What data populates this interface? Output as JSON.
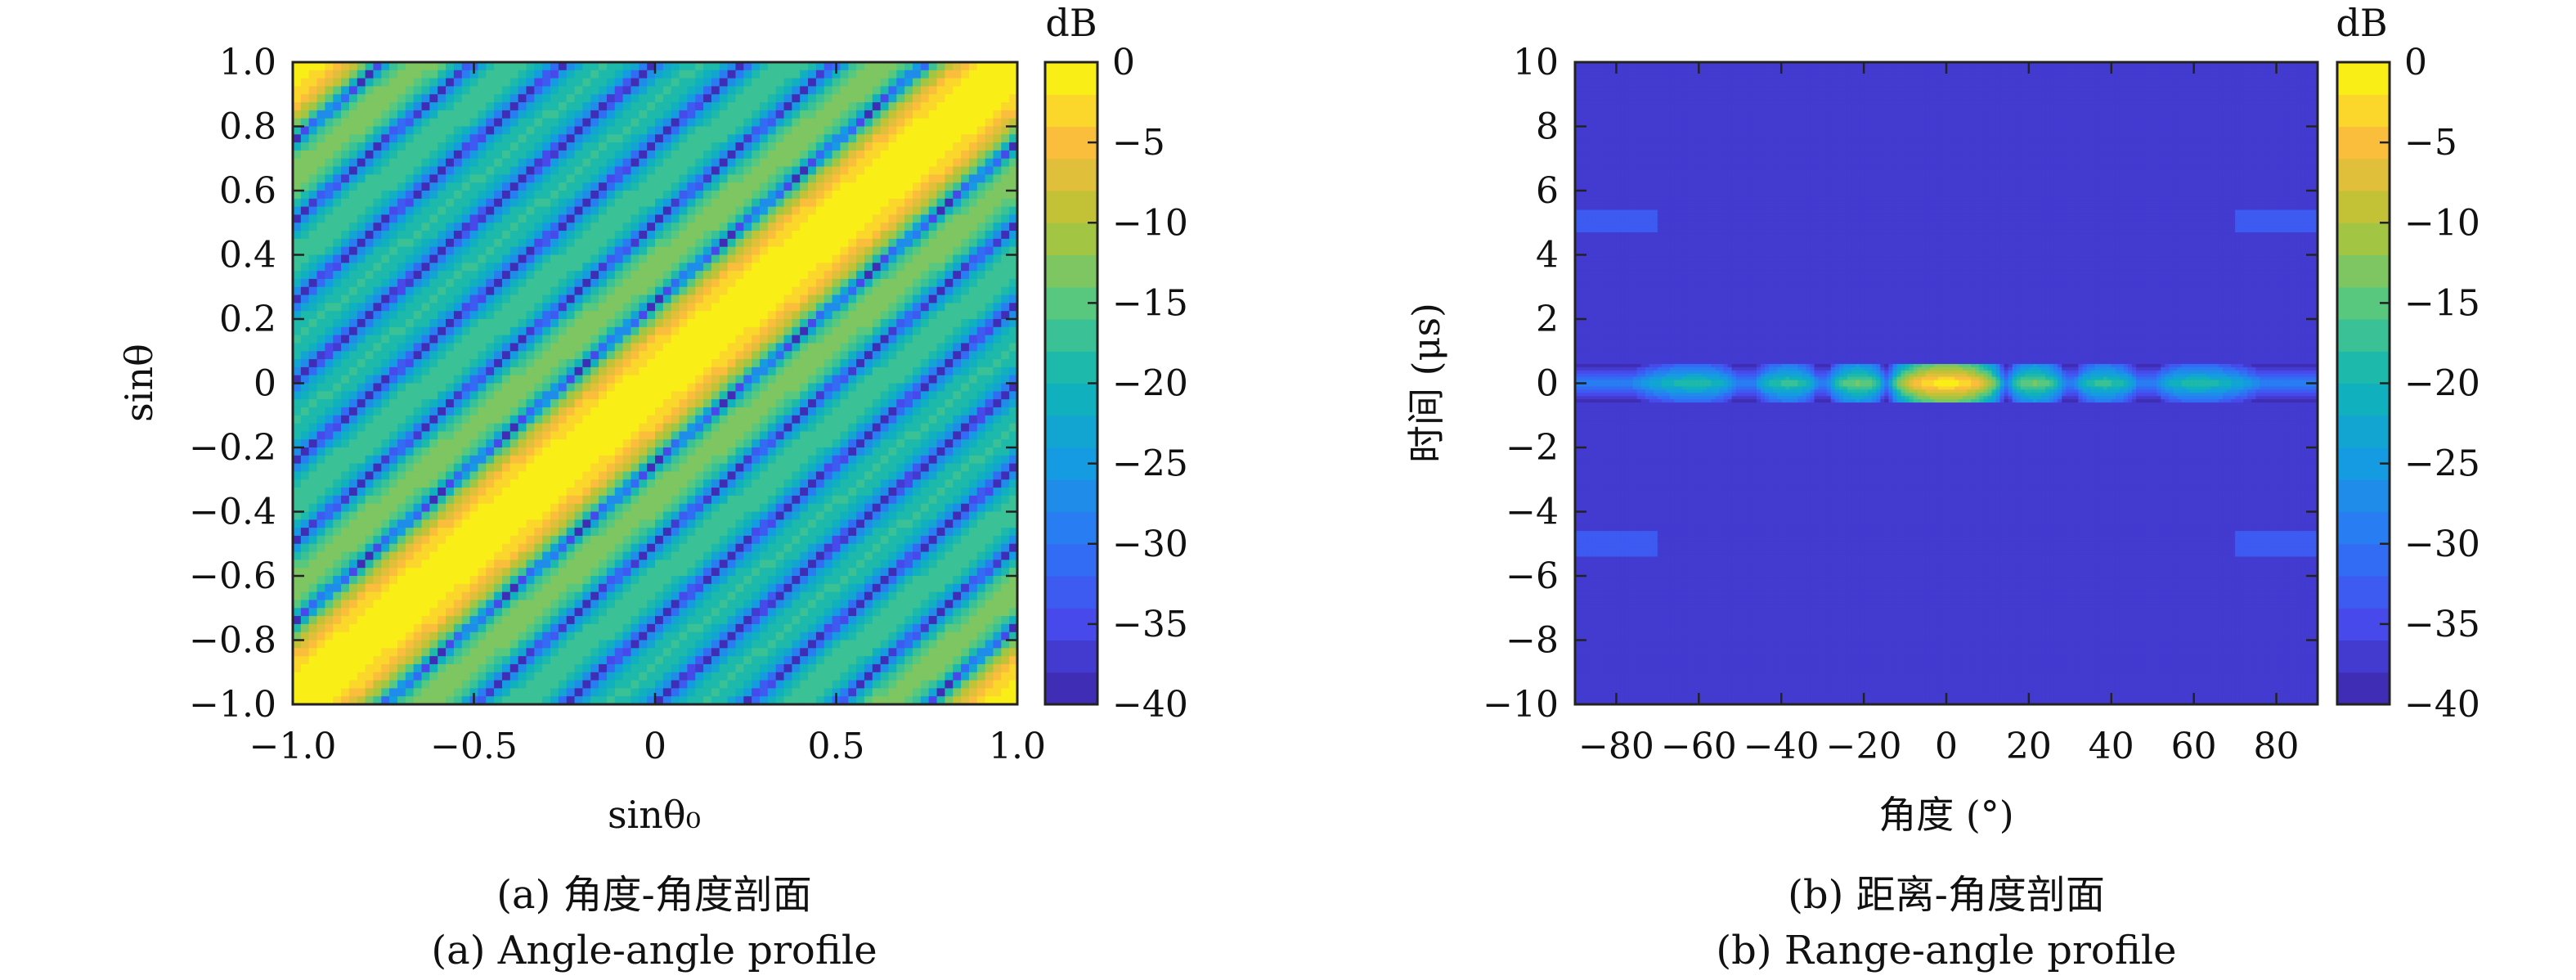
{
  "chart_data": [
    {
      "type": "heatmap",
      "title": "",
      "xlabel": "sinθ₀",
      "ylabel": "sinθ",
      "xlim": [
        -1.0,
        1.0
      ],
      "ylim": [
        -1.0,
        1.0
      ],
      "xticks": [
        "−1.0",
        "−0.5",
        "0",
        "0.5",
        "1.0"
      ],
      "xtick_values": [
        -1.0,
        -0.5,
        0,
        0.5,
        1.0
      ],
      "yticks": [
        "1.0",
        "0.8",
        "0.6",
        "0.4",
        "0.2",
        "0",
        "−0.2",
        "−0.4",
        "−0.6",
        "−0.8",
        "−1.0"
      ],
      "ytick_values": [
        1.0,
        0.8,
        0.6,
        0.4,
        0.2,
        0,
        -0.2,
        -0.4,
        -0.6,
        -0.8,
        -1.0
      ],
      "colorbar": {
        "label": "dB",
        "range": [
          -40,
          0
        ],
        "ticks": [
          "0",
          "−5",
          "−10",
          "−15",
          "−20",
          "−25",
          "−30",
          "−35",
          "−40"
        ],
        "tick_values": [
          0,
          -5,
          -10,
          -15,
          -20,
          -25,
          -30,
          -35,
          -40
        ]
      },
      "caption_cn": "(a) 角度-角度剖面",
      "caption_en": "(a) Angle-angle profile"
    },
    {
      "type": "heatmap",
      "title": "",
      "xlabel": "角度 (°)",
      "ylabel": "时间 (μs)",
      "xlim": [
        -90,
        90
      ],
      "ylim": [
        -10,
        10
      ],
      "xticks": [
        "−80",
        "−60",
        "−40",
        "−20",
        "0",
        "20",
        "40",
        "60",
        "80"
      ],
      "xtick_values": [
        -80,
        -60,
        -40,
        -20,
        0,
        20,
        40,
        60,
        80
      ],
      "yticks": [
        "10",
        "8",
        "6",
        "4",
        "2",
        "0",
        "−2",
        "−4",
        "−6",
        "−8",
        "−10"
      ],
      "ytick_values": [
        10,
        8,
        6,
        4,
        2,
        0,
        -2,
        -4,
        -6,
        -8,
        -10
      ],
      "colorbar": {
        "label": "dB",
        "range": [
          -40,
          0
        ],
        "ticks": [
          "0",
          "−5",
          "−10",
          "−15",
          "−20",
          "−25",
          "−30",
          "−35",
          "−40"
        ],
        "tick_values": [
          0,
          -5,
          -10,
          -15,
          -20,
          -25,
          -30,
          -35,
          -40
        ]
      },
      "caption_cn": "(b) 距离-角度剖面",
      "caption_en": "(b) Range-angle profile"
    }
  ]
}
